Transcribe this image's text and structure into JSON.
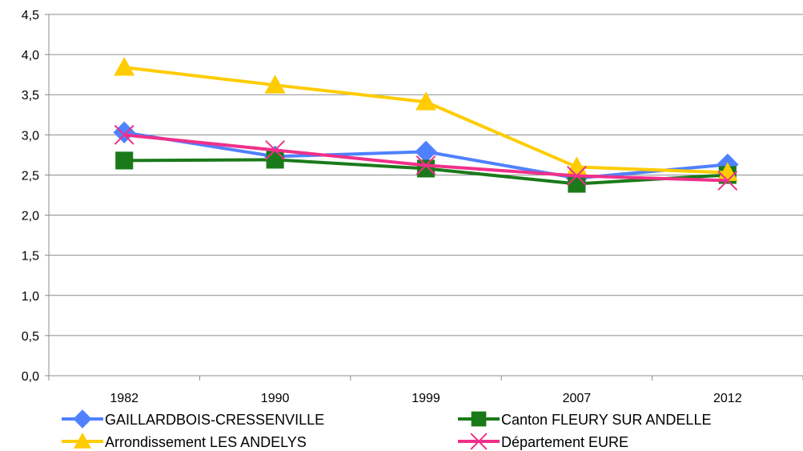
{
  "chart_data": {
    "type": "line",
    "title": "",
    "xlabel": "",
    "ylabel": "",
    "categories": [
      "1982",
      "1990",
      "1999",
      "2007",
      "2012"
    ],
    "ylim": [
      0,
      4.5
    ],
    "yticks": [
      "0,0",
      "0,5",
      "1,0",
      "1,5",
      "2,0",
      "2,5",
      "3,0",
      "3,5",
      "4,0",
      "4,5"
    ],
    "grid": "horizontal",
    "legend_position": "bottom",
    "series": [
      {
        "name": "GAILLARDBOIS-CRESSENVILLE",
        "values": [
          3.03,
          2.73,
          2.79,
          2.46,
          2.63
        ],
        "color": "#4F81FF",
        "marker": "diamond"
      },
      {
        "name": "Canton FLEURY SUR ANDELLE",
        "values": [
          2.68,
          2.69,
          2.58,
          2.39,
          2.5
        ],
        "color": "#1A7A1A",
        "marker": "square"
      },
      {
        "name": "Arrondissement LES ANDELYS",
        "values": [
          3.84,
          3.62,
          3.41,
          2.6,
          2.53
        ],
        "color": "#FFCC00",
        "marker": "triangle"
      },
      {
        "name": "Département EURE",
        "values": [
          3.0,
          2.81,
          2.62,
          2.49,
          2.43
        ],
        "color": "#F0308A",
        "marker": "x"
      }
    ]
  }
}
